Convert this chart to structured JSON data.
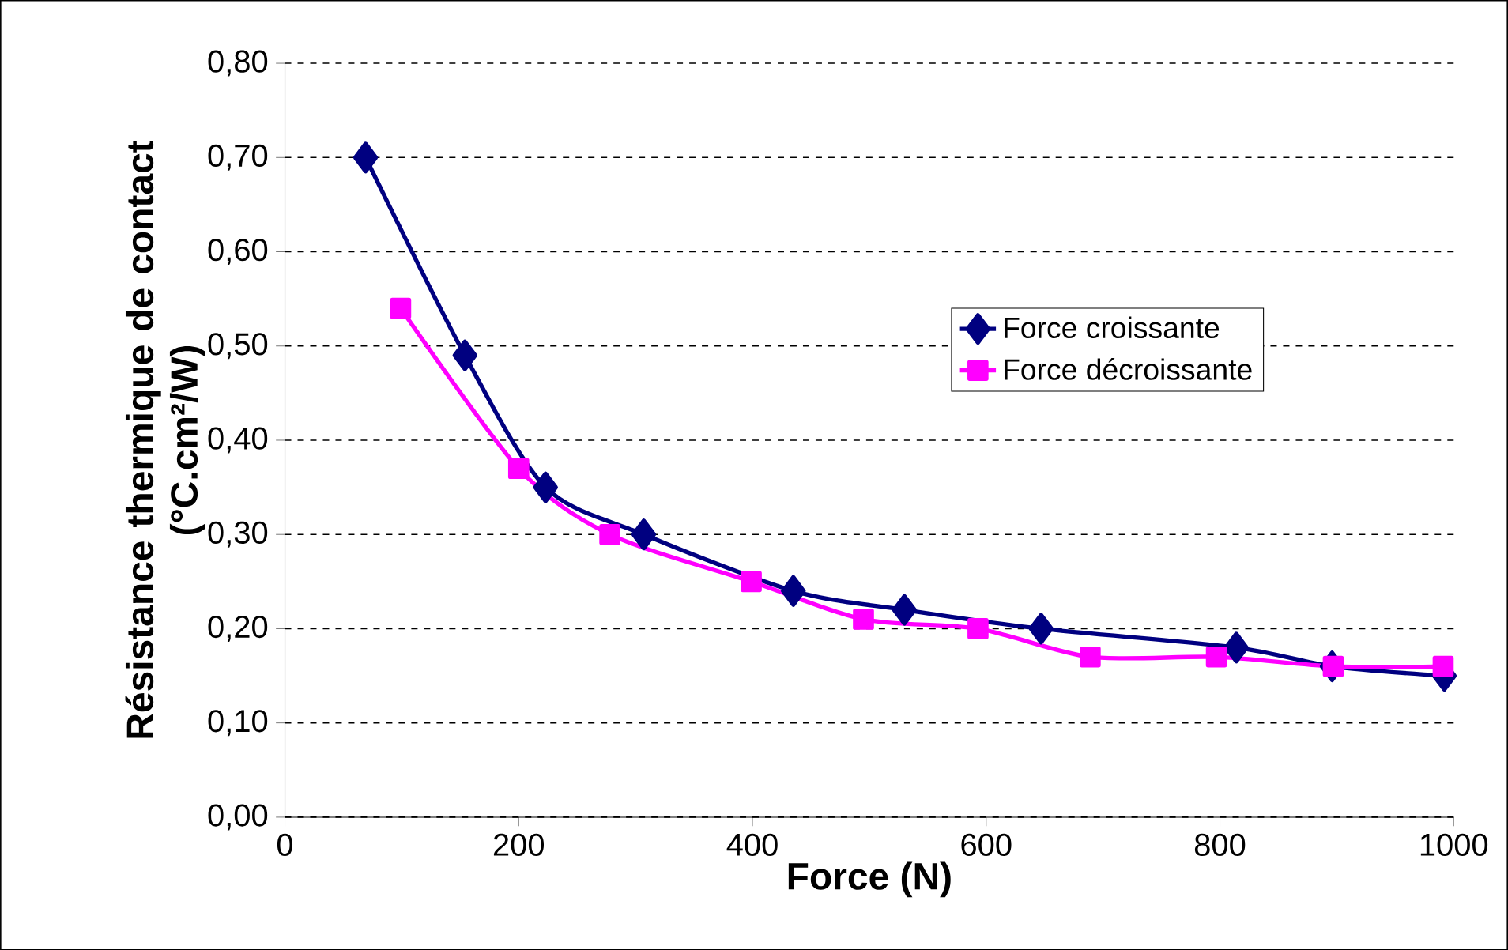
{
  "chart_data": {
    "type": "line",
    "xlabel": "Force (N)",
    "ylabel": "Résistance thermique de contact\n(°C.cm²/W)",
    "xlim": [
      0,
      1000
    ],
    "xticks": [
      0,
      200,
      400,
      600,
      800,
      1000
    ],
    "ylim": [
      0,
      0.8
    ],
    "yticks": [
      {
        "value": 0,
        "label": "0,00"
      },
      {
        "value": 0.1,
        "label": "0,10"
      },
      {
        "value": 0.2,
        "label": "0,20"
      },
      {
        "value": 0.3,
        "label": "0,30"
      },
      {
        "value": 0.4,
        "label": "0,40"
      },
      {
        "value": 0.5,
        "label": "0,50"
      },
      {
        "value": 0.6,
        "label": "0,60"
      },
      {
        "value": 0.7,
        "label": "0,70"
      },
      {
        "value": 0.8,
        "label": "0,80"
      }
    ],
    "grid": "y",
    "legend": "right",
    "line_style": "solid",
    "series": [
      {
        "name": "Force croissante",
        "color": "#000080",
        "marker": "diamond",
        "x": [
          69,
          154,
          223,
          307,
          435,
          530,
          647,
          814,
          896,
          992
        ],
        "values": [
          0.7,
          0.49,
          0.35,
          0.3,
          0.24,
          0.22,
          0.2,
          0.18,
          0.16,
          0.15
        ]
      },
      {
        "name": "Force décroissante",
        "color": "#ff00ff",
        "marker": "square",
        "x": [
          99,
          200,
          278,
          399,
          495,
          593,
          689,
          797,
          897,
          991
        ],
        "values": [
          0.54,
          0.37,
          0.3,
          0.25,
          0.21,
          0.2,
          0.17,
          0.17,
          0.16,
          0.16
        ]
      }
    ]
  }
}
